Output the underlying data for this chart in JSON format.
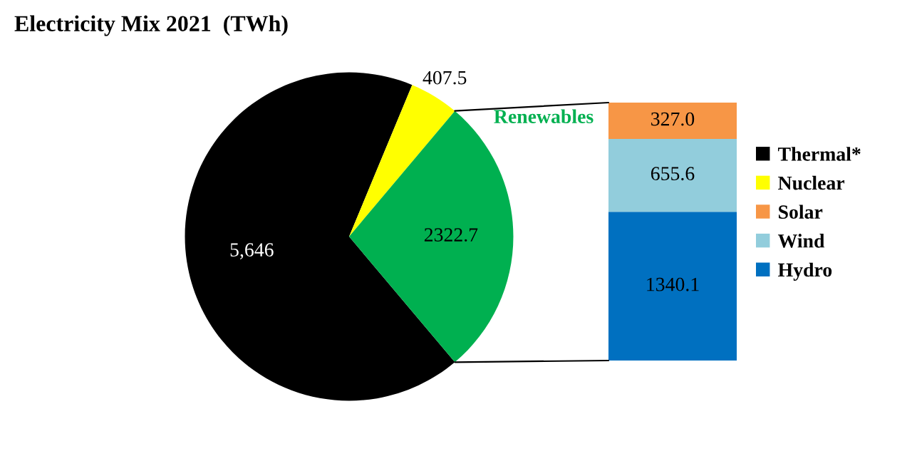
{
  "chart_data": [
    {
      "type": "pie",
      "title": "Electricity Mix 2021  (TWh)",
      "categories": [
        "Thermal*",
        "Nuclear",
        null
      ],
      "values": [
        5646,
        407.5,
        2322.7
      ],
      "colors": [
        "#000000",
        "#ffff00",
        "#00b050"
      ],
      "value_labels": [
        "5,646",
        "407.5",
        "2322.7"
      ],
      "annotations": [
        "Renewables"
      ],
      "legend": "right"
    },
    {
      "type": "bar",
      "stacked": true,
      "categories": [
        null
      ],
      "series": [
        {
          "name": "Hydro",
          "color": "#0070c0",
          "values": [
            1340.1
          ],
          "value_labels": [
            "1340.1"
          ]
        },
        {
          "name": "Wind",
          "color": "#92cddc",
          "values": [
            655.6
          ],
          "value_labels": [
            "655.6"
          ]
        },
        {
          "name": "Solar",
          "color": "#f79646",
          "values": [
            327.0
          ],
          "value_labels": [
            "327.0"
          ]
        }
      ],
      "legend": "right"
    }
  ]
}
